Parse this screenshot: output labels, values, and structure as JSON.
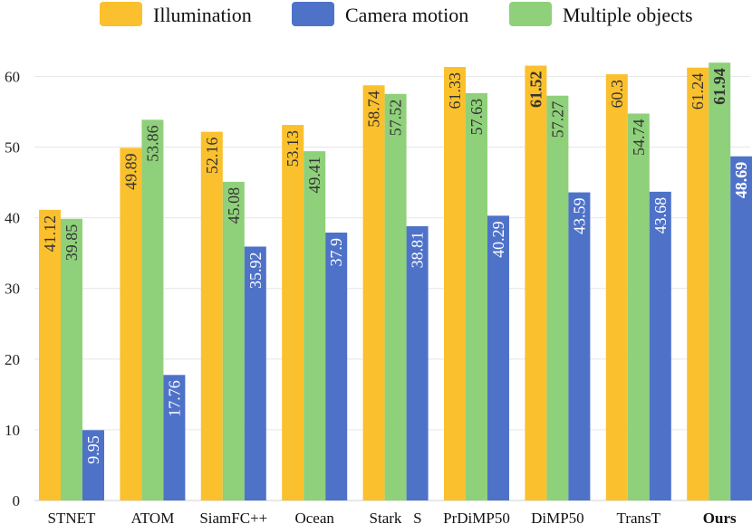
{
  "chart_data": {
    "type": "bar",
    "title": "",
    "xlabel": "",
    "ylabel": "",
    "ylim": [
      0,
      65
    ],
    "yticks": [
      0,
      10,
      20,
      30,
      40,
      50,
      60
    ],
    "grid": true,
    "legend_position": "top",
    "categories": [
      "STNET",
      "ATOM",
      "SiamFC++",
      "Ocean",
      "Stark   S",
      "PrDiMP50",
      "DiMP50",
      "TransT",
      "Ours"
    ],
    "bold_category": "Ours",
    "series": [
      {
        "name": "Illumination",
        "color": "#FBC02D",
        "values": [
          41.12,
          49.89,
          52.16,
          53.13,
          58.74,
          61.33,
          61.52,
          60.3,
          61.24
        ],
        "labels": [
          "41.12",
          "49.89",
          "52.16",
          "53.13",
          "58.74",
          "61.33",
          "61.52",
          "60.3",
          "61.24"
        ],
        "label_color": "#333333",
        "bold_index": [
          6
        ]
      },
      {
        "name": "Multiple objects",
        "color": "#8FD07A",
        "values": [
          39.85,
          53.86,
          45.08,
          49.41,
          57.52,
          57.63,
          57.27,
          54.74,
          61.94
        ],
        "labels": [
          "39.85",
          "53.86",
          "45.08",
          "49.41",
          "57.52",
          "57.63",
          "57.27",
          "54.74",
          "61.94"
        ],
        "label_color": "#333333",
        "bold_index": [
          8
        ]
      },
      {
        "name": "Camera motion",
        "color": "#4F72C9",
        "values": [
          9.95,
          17.76,
          35.92,
          37.9,
          38.81,
          40.29,
          43.59,
          43.68,
          48.69
        ],
        "labels": [
          "9.95",
          "17.76",
          "35.92",
          "37.9",
          "38.81",
          "40.29",
          "43.59",
          "43.68",
          "48.69"
        ],
        "label_color": "#ffffff",
        "bold_index": [
          8
        ]
      }
    ],
    "legend": [
      {
        "name": "Illumination",
        "color": "#FBC02D"
      },
      {
        "name": "Camera motion",
        "color": "#4F72C9"
      },
      {
        "name": "Multiple objects",
        "color": "#8FD07A"
      }
    ]
  }
}
